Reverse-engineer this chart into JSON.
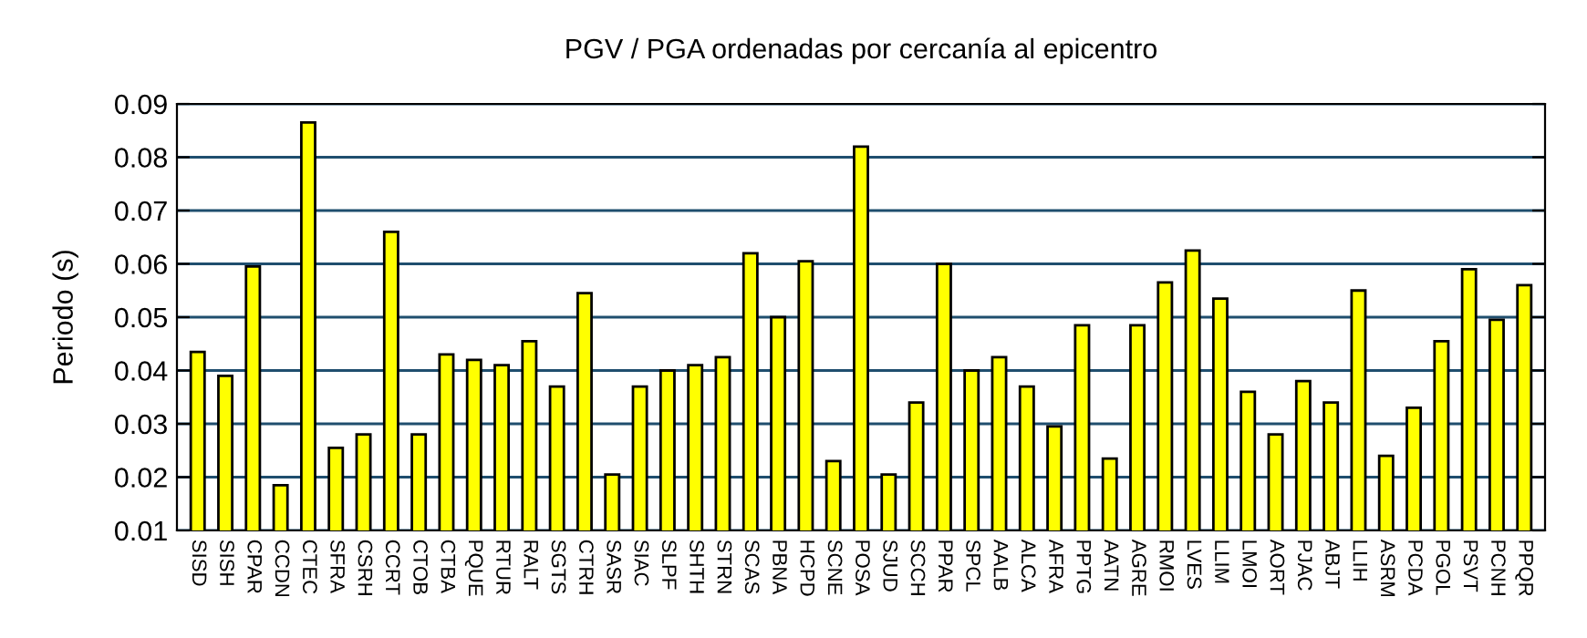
{
  "chart_data": {
    "type": "bar",
    "title": "PGV / PGA ordenadas por cercanía al epicentro",
    "ylabel": "Periodo (s)",
    "categories": [
      "SISD",
      "SISH",
      "CPAR",
      "CCDN",
      "CTEC",
      "SFRA",
      "CSRH",
      "CCRT",
      "CTOB",
      "CTBA",
      "PQUE",
      "RTUR",
      "RALT",
      "SGTS",
      "CTRH",
      "SASR",
      "SIAC",
      "SLPF",
      "SHTH",
      "STRN",
      "SCAS",
      "PBNA",
      "HCPD",
      "SCNE",
      "POSA",
      "SJUD",
      "SCCH",
      "PPAR",
      "SPCL",
      "AALB",
      "ALCA",
      "AFRA",
      "PPTG",
      "AATN",
      "AGRE",
      "RMOI",
      "LVES",
      "LLIM",
      "LMOI",
      "AORT",
      "PJAC",
      "ABJT",
      "LLIH",
      "ASRM",
      "PCDA",
      "PGOL",
      "PSVT",
      "PCNH",
      "PPQR"
    ],
    "values": [
      0.0435,
      0.039,
      0.0595,
      0.0185,
      0.0865,
      0.0255,
      0.028,
      0.066,
      0.028,
      0.043,
      0.042,
      0.041,
      0.0455,
      0.037,
      0.0545,
      0.0205,
      0.037,
      0.04,
      0.041,
      0.0425,
      0.062,
      0.05,
      0.0605,
      0.023,
      0.082,
      0.0205,
      0.034,
      0.06,
      0.04,
      0.0425,
      0.037,
      0.0295,
      0.0485,
      0.0235,
      0.0485,
      0.0565,
      0.0625,
      0.0535,
      0.036,
      0.028,
      0.038,
      0.034,
      0.055,
      0.024,
      0.033,
      0.0455,
      0.059,
      0.0495,
      0.056
    ],
    "color": "#ffff00",
    "ylim": [
      0.01,
      0.09
    ],
    "yticks": [
      0.01,
      0.02,
      0.03,
      0.04,
      0.05,
      0.06,
      0.07,
      0.08,
      0.09
    ],
    "grid": "y",
    "legend": false
  }
}
